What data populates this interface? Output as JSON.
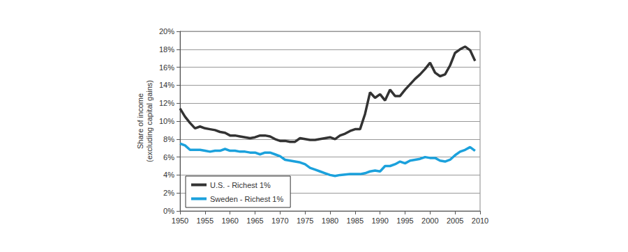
{
  "chart_data": {
    "type": "line",
    "ylabel": "Share of income\n(excluding capital gains)",
    "x": [
      1950,
      1951,
      1952,
      1953,
      1954,
      1955,
      1956,
      1957,
      1958,
      1959,
      1960,
      1961,
      1962,
      1963,
      1964,
      1965,
      1966,
      1967,
      1968,
      1969,
      1970,
      1971,
      1972,
      1973,
      1974,
      1975,
      1976,
      1977,
      1978,
      1979,
      1980,
      1981,
      1982,
      1983,
      1984,
      1985,
      1986,
      1987,
      1988,
      1989,
      1990,
      1991,
      1992,
      1993,
      1994,
      1995,
      1996,
      1997,
      1998,
      1999,
      2000,
      2001,
      2002,
      2003,
      2004,
      2005,
      2006,
      2007,
      2008,
      2009
    ],
    "series": [
      {
        "name": "U.S. - Richest 1%",
        "color": "#333333",
        "values": [
          11.4,
          10.5,
          9.8,
          9.2,
          9.4,
          9.2,
          9.1,
          9.0,
          8.8,
          8.7,
          8.4,
          8.4,
          8.3,
          8.2,
          8.1,
          8.2,
          8.4,
          8.4,
          8.3,
          8.0,
          7.8,
          7.8,
          7.7,
          7.7,
          8.1,
          8.0,
          7.9,
          7.9,
          8.0,
          8.1,
          8.2,
          8.0,
          8.4,
          8.6,
          8.9,
          9.1,
          9.1,
          10.8,
          13.2,
          12.6,
          13.0,
          12.3,
          13.5,
          12.8,
          12.8,
          13.5,
          14.1,
          14.7,
          15.2,
          15.8,
          16.5,
          15.4,
          15.0,
          15.2,
          16.2,
          17.6,
          18.0,
          18.3,
          17.9,
          16.7
        ]
      },
      {
        "name": "Sweden - Richest 1%",
        "color": "#1ba1dc",
        "values": [
          7.5,
          7.3,
          6.8,
          6.8,
          6.8,
          6.7,
          6.6,
          6.7,
          6.7,
          6.9,
          6.7,
          6.7,
          6.6,
          6.6,
          6.5,
          6.5,
          6.3,
          6.5,
          6.5,
          6.3,
          6.1,
          5.7,
          5.6,
          5.5,
          5.4,
          5.2,
          4.8,
          4.6,
          4.4,
          4.2,
          4.0,
          3.9,
          4.0,
          4.05,
          4.1,
          4.1,
          4.1,
          4.2,
          4.4,
          4.5,
          4.4,
          5.0,
          5.0,
          5.2,
          5.5,
          5.3,
          5.6,
          5.7,
          5.8,
          6.0,
          5.9,
          5.9,
          5.6,
          5.5,
          5.7,
          6.2,
          6.6,
          6.8,
          7.1,
          6.7
        ]
      }
    ],
    "xlim": [
      1950,
      2010
    ],
    "xticks": [
      1950,
      1955,
      1960,
      1965,
      1970,
      1975,
      1980,
      1985,
      1990,
      1995,
      2000,
      2005,
      2010
    ],
    "ylim": [
      0,
      20
    ],
    "yticks": [
      {
        "value": 0,
        "label": "0%"
      },
      {
        "value": 2,
        "label": "2%"
      },
      {
        "value": 4,
        "label": "4%"
      },
      {
        "value": 6,
        "label": "6%"
      },
      {
        "value": 8,
        "label": "8%"
      },
      {
        "value": 10,
        "label": "10%"
      },
      {
        "value": 12,
        "label": "12%"
      },
      {
        "value": 14,
        "label": "14%"
      },
      {
        "value": 16,
        "label": "16%"
      },
      {
        "value": 18,
        "label": "18%"
      },
      {
        "value": 20,
        "label": "20%"
      }
    ],
    "grid": true,
    "legend": "lower left"
  }
}
